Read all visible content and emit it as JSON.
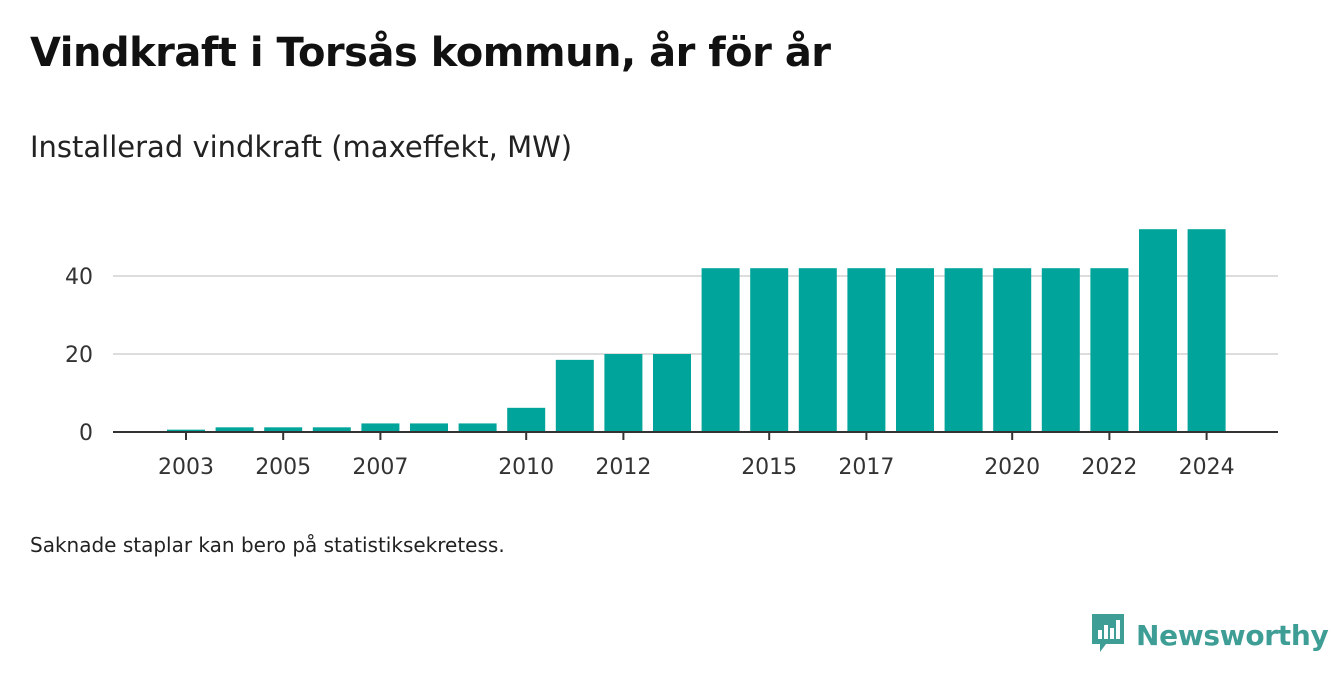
{
  "title": "Vindkraft i Torsås kommun, år för år",
  "subtitle": "Installerad vindkraft (maxeffekt, MW)",
  "footnote": "Saknade staplar kan bero på statistiksekretess.",
  "brand": {
    "name": "Newsworthy",
    "icon": "newsworthy-logo-icon",
    "color": "#3e9e96"
  },
  "colors": {
    "bar": "#00a49a",
    "grid": "#dddddd",
    "axis": "#333333"
  },
  "chart_data": {
    "type": "bar",
    "categories": [
      "2003",
      "2004",
      "2005",
      "2006",
      "2007",
      "2008",
      "2009",
      "2010",
      "2011",
      "2012",
      "2013",
      "2014",
      "2015",
      "2016",
      "2017",
      "2018",
      "2019",
      "2020",
      "2021",
      "2022",
      "2023",
      "2024"
    ],
    "values": [
      0.6,
      1.2,
      1.2,
      1.2,
      2.2,
      2.2,
      2.2,
      6.2,
      18.5,
      20,
      20,
      42,
      42,
      42,
      42,
      42,
      42,
      42,
      42,
      42,
      52,
      52
    ],
    "x_tick_labels": [
      "2003",
      "2005",
      "2007",
      "2010",
      "2012",
      "2015",
      "2017",
      "2020",
      "2022",
      "2024"
    ],
    "y_ticks": [
      0,
      20,
      40
    ],
    "ylim": [
      0,
      55
    ],
    "xlabel": "",
    "ylabel": "",
    "grid": true,
    "legend": false
  }
}
